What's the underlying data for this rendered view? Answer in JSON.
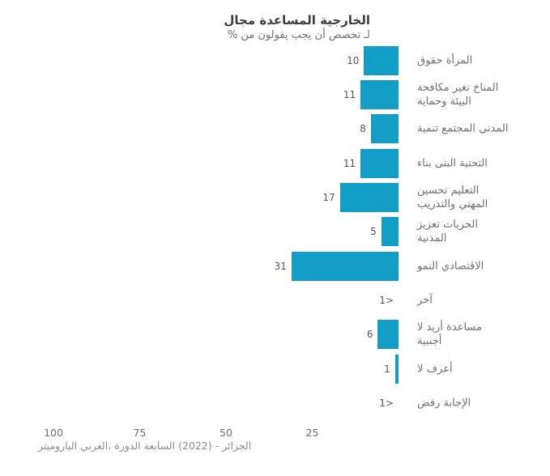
{
  "colors": {
    "bar": "#129dc6",
    "title_text": "#3d3d3d",
    "label_text": "#6f6f6f",
    "value_text": "#565656",
    "tick_text": "#6f6f6f",
    "source_text": "#8c8c8c",
    "background": "#ffffff"
  },
  "chart_data": {
    "type": "bar",
    "orientation": "horizontal",
    "bar_direction": "right-to-left",
    "title": "مجال المساعدة الخارجية",
    "subtitle": "% من يقولون يجب أن تخصص لـ",
    "categories": [
      "حقوق المرأة",
      "مكافحة تغير المناخ\nوحماية البيئة",
      "تنمية المجتمع المدني",
      "بناء البنى التحتية",
      "تحسين التعليم\nوالتدريب المهني",
      "تعزيز الحريات\nالمدنية",
      "النمو الاقتصادي",
      "آخر",
      "لا أريد مساعدة\nأجنبية",
      "لا أعرف",
      "رفض الإجابة"
    ],
    "values": [
      "10",
      "11",
      "8",
      "11",
      "17",
      "5",
      "31",
      "<1",
      "6",
      "1",
      "<1"
    ],
    "values_numeric": [
      10,
      11,
      8,
      11,
      17,
      5,
      31,
      0.5,
      6,
      1,
      0.5
    ],
    "xticks": [
      "100",
      "75",
      "50",
      "25"
    ],
    "xlim": [
      0,
      100
    ],
    "grid": false,
    "legend": false,
    "source": "الباروميتر العربي، الدورة السابعة (2022) - الجزائر"
  }
}
